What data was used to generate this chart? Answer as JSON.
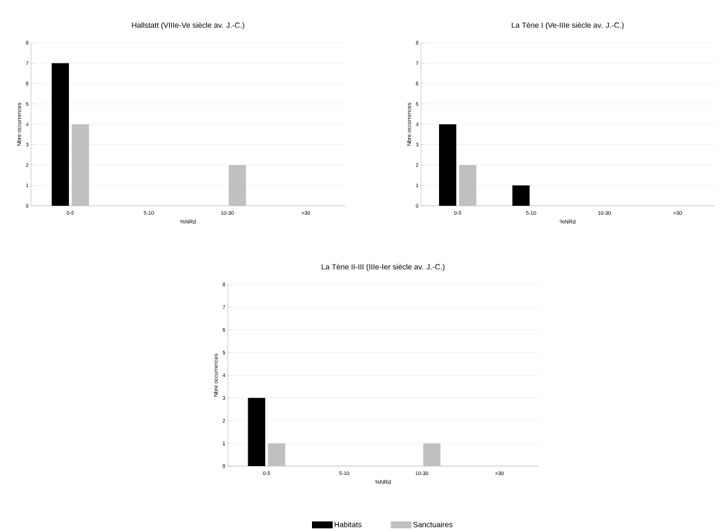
{
  "chart_data": [
    {
      "type": "bar",
      "title": "Hallstatt (VIIIe-Ve siècle av. J.-C.)",
      "xlabel": "%NRd",
      "ylabel": "Nbre occurrences",
      "categories": [
        "0-5",
        "5-10",
        "10-30",
        ">30"
      ],
      "ylim": [
        0,
        8
      ],
      "yticks": [
        0,
        1,
        2,
        3,
        4,
        5,
        6,
        7,
        8
      ],
      "grid": "y",
      "series": [
        {
          "color": "#000000",
          "values": [
            7,
            0,
            0,
            0
          ]
        },
        {
          "color": "#c0c0c0",
          "values": [
            4,
            0,
            2,
            0
          ]
        }
      ]
    },
    {
      "type": "bar",
      "title": "La Tène I (Ve-IIIe siècle av. J.-C.)",
      "xlabel": "%NRd",
      "ylabel": "Nbre occurrences",
      "categories": [
        "0-5",
        "5-10",
        "10-30",
        ">30"
      ],
      "ylim": [
        0,
        8
      ],
      "yticks": [
        0,
        1,
        2,
        3,
        4,
        5,
        6,
        7,
        8
      ],
      "grid": "y",
      "series": [
        {
          "color": "#000000",
          "values": [
            4,
            1,
            0,
            0
          ]
        },
        {
          "color": "#c0c0c0",
          "values": [
            2,
            0,
            0,
            0
          ]
        }
      ]
    },
    {
      "type": "bar",
      "title": "La Tène II-III (IIIe-Ier siècle av. J.-C.)",
      "xlabel": "%NRd",
      "ylabel": "Nbre occurrences",
      "categories": [
        "0-5",
        "5-10",
        "10-30",
        ">30"
      ],
      "ylim": [
        0,
        8
      ],
      "yticks": [
        0,
        1,
        2,
        3,
        4,
        5,
        6,
        7,
        8
      ],
      "grid": "y",
      "legend": "bottom",
      "series": [
        {
          "name": "Habitats",
          "color": "#000000",
          "values": [
            3,
            0,
            0,
            0
          ]
        },
        {
          "name": "Sanctuaires",
          "color": "#c0c0c0",
          "values": [
            1,
            0,
            1,
            0
          ]
        }
      ]
    }
  ]
}
